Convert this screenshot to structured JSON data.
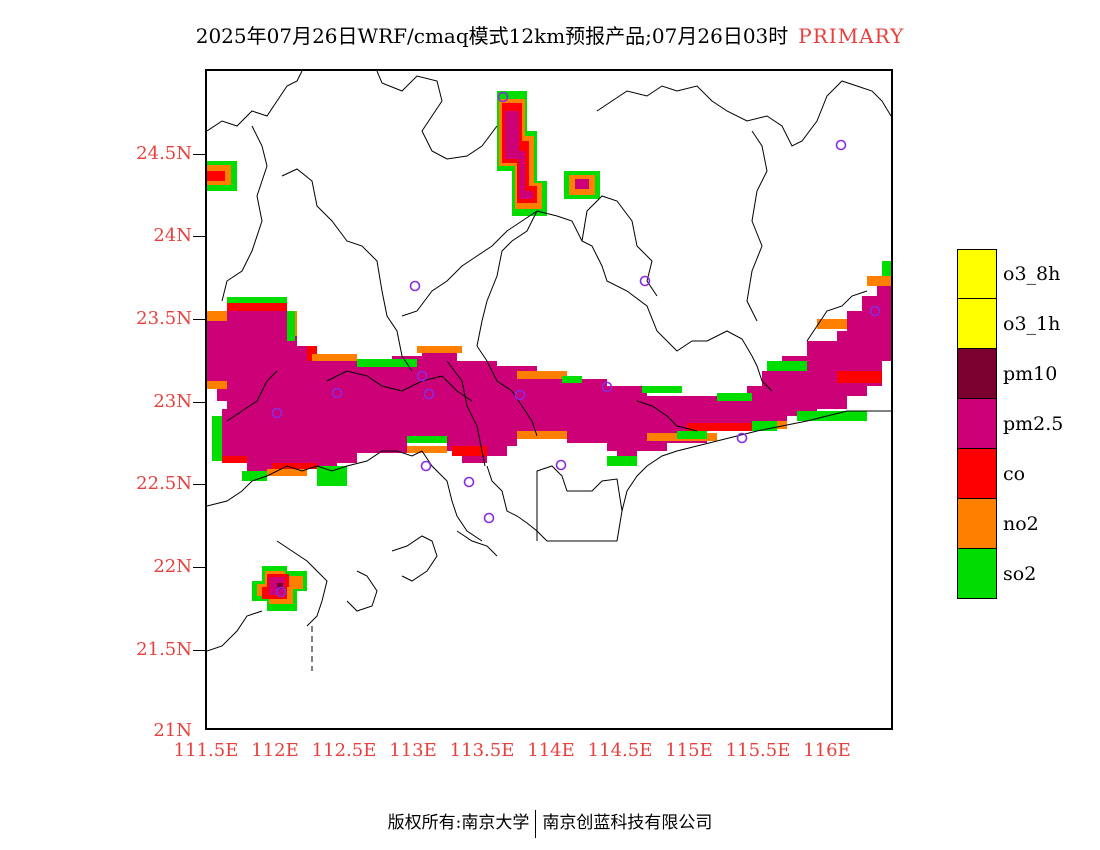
{
  "header": {
    "title": "2025年07月26日WRF/cmaq模式12km预报产品;07月26日03时",
    "tag": "PRIMARY"
  },
  "axes": {
    "y_ticks": [
      "24.5N",
      "24N",
      "23.5N",
      "23N",
      "22.5N",
      "22N",
      "21.5N",
      "21N"
    ],
    "x_ticks": [
      "111.5E",
      "112E",
      "112.5E",
      "113E",
      "113.5E",
      "114E",
      "114.5E",
      "115E",
      "115.5E",
      "116E"
    ]
  },
  "legend": {
    "items": [
      {
        "label": "o3_8h",
        "color": "#ffff00"
      },
      {
        "label": "o3_1h",
        "color": "#ffff00"
      },
      {
        "label": "pm10",
        "color": "#7a0030"
      },
      {
        "label": "pm2.5",
        "color": "#cc0077"
      },
      {
        "label": "co",
        "color": "#ff0000"
      },
      {
        "label": "no2",
        "color": "#ff7f00"
      },
      {
        "label": "so2",
        "color": "#00dd00"
      }
    ]
  },
  "footer": {
    "left": "版权所有:南京大学",
    "right": "南京创蓝科技有限公司"
  }
}
